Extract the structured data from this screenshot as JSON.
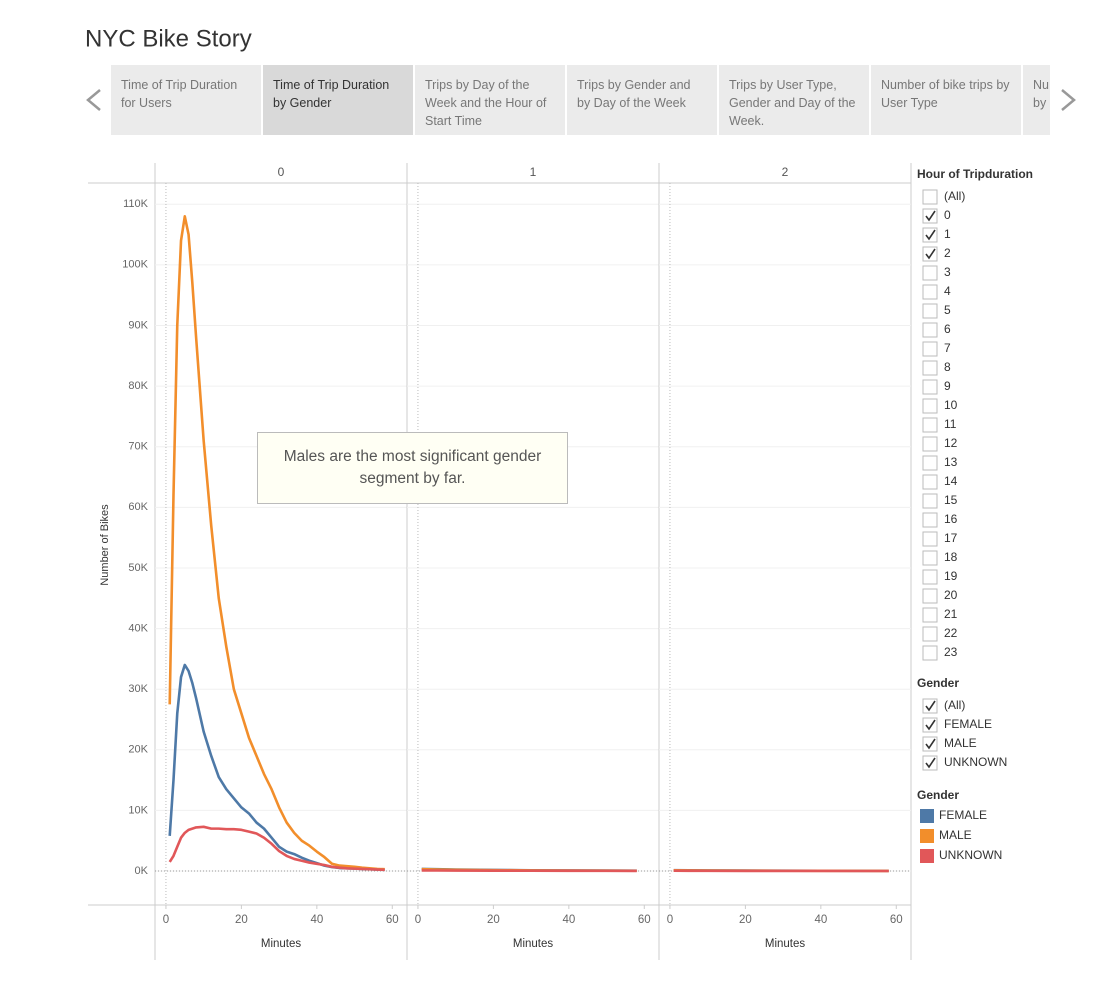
{
  "title": "NYC Bike Story",
  "story_tabs": {
    "items": [
      "Time of Trip Duration for Users",
      "Time of Trip Duration by Gender",
      "Trips by Day of the Week and the Hour of Start Time",
      "Trips by Gender and by Day of the Week",
      "Trips by User Type, Gender and Day of the Week.",
      "Number of bike trips by User Type",
      "Nu by"
    ],
    "active": 1
  },
  "filters": [
    {
      "title": "Hour of Tripduration",
      "items": [
        "(All)",
        "0",
        "1",
        "2",
        "3",
        "4",
        "5",
        "6",
        "7",
        "8",
        "9",
        "10",
        "11",
        "12",
        "13",
        "14",
        "15",
        "16",
        "17",
        "18",
        "19",
        "20",
        "21",
        "22",
        "23"
      ],
      "checked": [
        false,
        true,
        true,
        true,
        false,
        false,
        false,
        false,
        false,
        false,
        false,
        false,
        false,
        false,
        false,
        false,
        false,
        false,
        false,
        false,
        false,
        false,
        false,
        false,
        false
      ]
    },
    {
      "title": "Gender",
      "items": [
        "(All)",
        "FEMALE",
        "MALE",
        "UNKNOWN"
      ],
      "checked": [
        true,
        true,
        true,
        true
      ]
    }
  ],
  "legend": {
    "title": "Gender"
  },
  "chart_data": [
    {
      "type": "line",
      "panel_title": "0",
      "xlabel": "Minutes",
      "ylabel": "Number of Bikes",
      "annotation": "Males are the most significant gender segment by far.",
      "x": [
        1,
        2,
        3,
        4,
        5,
        6,
        7,
        8,
        10,
        12,
        14,
        16,
        18,
        20,
        22,
        24,
        26,
        28,
        30,
        32,
        34,
        36,
        38,
        40,
        42,
        44,
        46,
        48,
        50,
        52,
        54,
        56,
        58
      ],
      "series": [
        {
          "name": "FEMALE",
          "color": "#4e79a7",
          "values": [
            5800,
            15000,
            26000,
            32000,
            34000,
            33000,
            31000,
            28500,
            23000,
            19000,
            15500,
            13500,
            12000,
            10500,
            9500,
            8000,
            7000,
            5500,
            4000,
            3200,
            2800,
            2200,
            1700,
            1300,
            900,
            650,
            500,
            450,
            400,
            350,
            300,
            250,
            200
          ]
        },
        {
          "name": "MALE",
          "color": "#f28e2b",
          "values": [
            27500,
            62000,
            90000,
            104000,
            108000,
            105000,
            97000,
            88000,
            71000,
            57000,
            45000,
            37000,
            30000,
            26000,
            22000,
            19000,
            16000,
            13500,
            10500,
            8000,
            6300,
            5000,
            4200,
            3200,
            2300,
            1200,
            900,
            800,
            700,
            550,
            450,
            350,
            300
          ]
        },
        {
          "name": "UNKNOWN",
          "color": "#e15759",
          "values": [
            1500,
            2500,
            4000,
            5500,
            6300,
            6800,
            7000,
            7200,
            7300,
            7000,
            7000,
            6900,
            6900,
            6800,
            6500,
            6200,
            5500,
            4500,
            3300,
            2500,
            2000,
            1700,
            1400,
            1200,
            1000,
            700,
            550,
            450,
            400,
            350,
            300,
            250,
            200
          ]
        }
      ],
      "xlim": [
        -2.9,
        63.9
      ],
      "xticks": [
        0,
        20,
        40,
        60
      ],
      "ylim": [
        -5600,
        113500
      ],
      "yticks": [
        {
          "value": 0,
          "label": "0K"
        },
        {
          "value": 10000,
          "label": "10K"
        },
        {
          "value": 20000,
          "label": "20K"
        },
        {
          "value": 30000,
          "label": "30K"
        },
        {
          "value": 40000,
          "label": "40K"
        },
        {
          "value": 50000,
          "label": "50K"
        },
        {
          "value": 60000,
          "label": "60K"
        },
        {
          "value": 70000,
          "label": "70K"
        },
        {
          "value": 80000,
          "label": "80K"
        },
        {
          "value": 90000,
          "label": "90K"
        },
        {
          "value": 100000,
          "label": "100K"
        },
        {
          "value": 110000,
          "label": "110K"
        }
      ],
      "grid": true
    },
    {
      "type": "line",
      "panel_title": "1",
      "xlabel": "Minutes",
      "x": [
        1,
        5,
        10,
        20,
        30,
        40,
        50,
        58
      ],
      "series": [
        {
          "name": "FEMALE",
          "color": "#4e79a7",
          "values": [
            350,
            300,
            250,
            180,
            130,
            100,
            80,
            60
          ]
        },
        {
          "name": "MALE",
          "color": "#f28e2b",
          "values": [
            300,
            250,
            200,
            150,
            110,
            80,
            60,
            50
          ]
        },
        {
          "name": "UNKNOWN",
          "color": "#e15759",
          "values": [
            100,
            90,
            80,
            60,
            50,
            40,
            30,
            20
          ]
        }
      ],
      "xlim": [
        -2.9,
        63.9
      ],
      "xticks": [
        0,
        20,
        40,
        60
      ],
      "ylim": [
        -5600,
        113500
      ]
    },
    {
      "type": "line",
      "panel_title": "2",
      "xlabel": "Minutes",
      "x": [
        1,
        5,
        10,
        20,
        30,
        40,
        50,
        58
      ],
      "series": [
        {
          "name": "FEMALE",
          "color": "#4e79a7",
          "values": [
            150,
            120,
            100,
            80,
            60,
            50,
            40,
            30
          ]
        },
        {
          "name": "MALE",
          "color": "#f28e2b",
          "values": [
            120,
            100,
            80,
            60,
            50,
            40,
            30,
            20
          ]
        },
        {
          "name": "UNKNOWN",
          "color": "#e15759",
          "values": [
            50,
            40,
            30,
            25,
            20,
            15,
            10,
            10
          ]
        }
      ],
      "xlim": [
        -2.9,
        63.9
      ],
      "xticks": [
        0,
        20,
        40,
        60
      ],
      "ylim": [
        -5600,
        113500
      ]
    }
  ]
}
